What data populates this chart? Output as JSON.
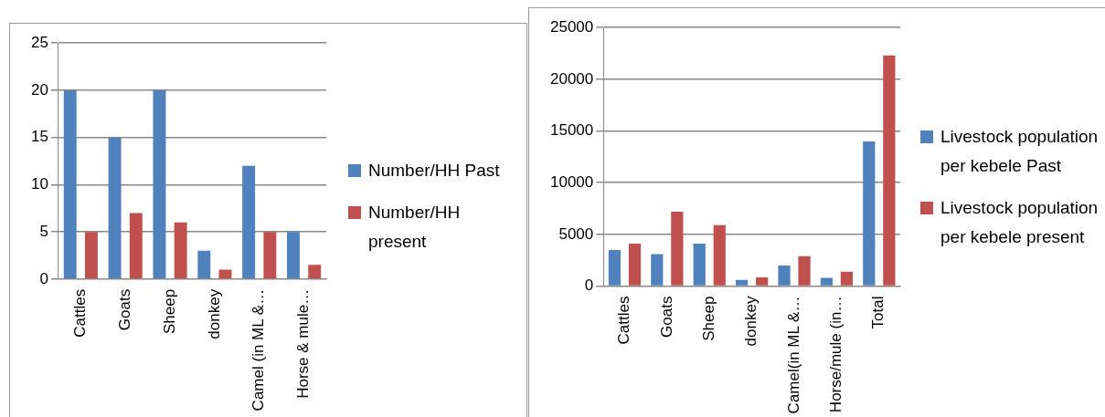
{
  "chart_data": [
    {
      "type": "bar",
      "categories": [
        "Cattles",
        "Goats",
        "Sheep",
        "donkey",
        "Camel (in ML &…",
        "Horse & mule…"
      ],
      "series": [
        {
          "name": "Number/HH Past",
          "color": "#4f81bd",
          "values": [
            20,
            15,
            20,
            3,
            12,
            5
          ]
        },
        {
          "name": "Number/HH present",
          "color": "#c0504d",
          "values": [
            5,
            7,
            6,
            1,
            5,
            1.5
          ]
        }
      ],
      "ylim": [
        0,
        25
      ],
      "yticks": [
        0,
        5,
        10,
        15,
        20,
        25
      ],
      "grid": "y",
      "legend": "right"
    },
    {
      "type": "bar",
      "categories": [
        "Cattles",
        "Goats",
        "Sheep",
        "donkey",
        "Camel(in ML &…",
        "Horse/mule (in…",
        "Total"
      ],
      "series": [
        {
          "name": "Livestock population per kebele  Past",
          "color": "#4f81bd",
          "values": [
            3500,
            3100,
            4100,
            600,
            2000,
            800,
            14000
          ]
        },
        {
          "name": "Livestock population per kebele  present",
          "color": "#c0504d",
          "values": [
            4100,
            7200,
            5900,
            850,
            2900,
            1400,
            22300
          ]
        }
      ],
      "ylim": [
        0,
        25000
      ],
      "yticks": [
        0,
        5000,
        10000,
        15000,
        20000,
        25000
      ],
      "grid": "y",
      "legend": "right"
    }
  ]
}
